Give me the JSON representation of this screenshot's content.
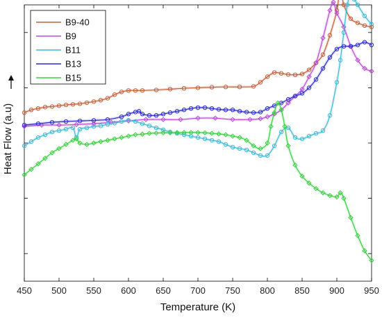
{
  "chart_data": {
    "type": "line",
    "xlabel": "Temperature (K)",
    "ylabel": "Heat Flow (a.u)",
    "xlim": [
      450,
      950
    ],
    "ylim": [
      0,
      10
    ],
    "xticks": [
      450,
      500,
      550,
      600,
      650,
      700,
      750,
      800,
      850,
      900,
      950
    ],
    "yticks": [
      1,
      3,
      5,
      7,
      9
    ],
    "y_tick_labels_shown": false,
    "grid": false,
    "legend_position": "top-left",
    "series": [
      {
        "name": "B9-40",
        "color": "#c0613a",
        "marker": "circle",
        "x": [
          450,
          460,
          470,
          480,
          490,
          500,
          510,
          520,
          530,
          540,
          550,
          560,
          570,
          580,
          590,
          600,
          610,
          620,
          640,
          660,
          680,
          700,
          720,
          740,
          760,
          780,
          790,
          800,
          810,
          820,
          830,
          840,
          850,
          860,
          870,
          880,
          890,
          900,
          905,
          910,
          920,
          930,
          940,
          950
        ],
        "y": [
          6.1,
          6.2,
          6.25,
          6.3,
          6.32,
          6.35,
          6.38,
          6.4,
          6.42,
          6.46,
          6.5,
          6.55,
          6.62,
          6.75,
          6.85,
          6.9,
          6.9,
          6.9,
          6.92,
          6.95,
          6.98,
          7.0,
          7.02,
          7.03,
          7.03,
          7.05,
          7.2,
          7.4,
          7.55,
          7.52,
          7.48,
          7.47,
          7.5,
          7.65,
          7.9,
          8.2,
          8.9,
          9.8,
          10.6,
          10.0,
          9.5,
          9.35,
          9.25,
          9.2
        ]
      },
      {
        "name": "B9",
        "color": "#b84ad8",
        "marker": "diamond",
        "x": [
          450,
          475,
          500,
          525,
          550,
          575,
          600,
          625,
          650,
          675,
          700,
          725,
          750,
          775,
          790,
          800,
          810,
          820,
          830,
          840,
          850,
          860,
          870,
          880,
          890,
          895,
          900,
          910,
          920,
          930,
          940,
          950
        ],
        "y": [
          5.6,
          5.65,
          5.65,
          5.67,
          5.7,
          5.75,
          5.8,
          5.85,
          5.85,
          5.85,
          5.9,
          5.9,
          5.85,
          5.85,
          5.88,
          5.95,
          6.05,
          6.2,
          6.45,
          6.7,
          6.95,
          7.4,
          7.9,
          8.8,
          9.8,
          10.1,
          9.7,
          9.2,
          8.5,
          8.0,
          7.7,
          7.6
        ]
      },
      {
        "name": "B11",
        "color": "#3fb8d8",
        "marker": "circle",
        "x": [
          450,
          460,
          470,
          480,
          490,
          500,
          510,
          520,
          525,
          530,
          540,
          550,
          560,
          570,
          580,
          590,
          600,
          610,
          620,
          630,
          640,
          650,
          660,
          670,
          680,
          690,
          700,
          710,
          720,
          730,
          740,
          750,
          760,
          770,
          780,
          790,
          800,
          810,
          820,
          830,
          840,
          850,
          860,
          870,
          880,
          890,
          900,
          905,
          910,
          915,
          920,
          925,
          930,
          940,
          950
        ],
        "y": [
          4.9,
          5.05,
          5.2,
          5.3,
          5.4,
          5.45,
          5.5,
          5.55,
          5.2,
          5.5,
          5.55,
          5.6,
          5.62,
          5.68,
          5.72,
          5.78,
          5.82,
          5.78,
          5.7,
          5.62,
          5.55,
          5.48,
          5.4,
          5.35,
          5.3,
          5.25,
          5.2,
          5.15,
          5.1,
          5.05,
          4.95,
          4.85,
          4.8,
          4.75,
          4.65,
          4.55,
          4.55,
          4.9,
          5.4,
          5.55,
          5.2,
          5.15,
          5.25,
          5.35,
          5.45,
          6.0,
          7.2,
          8.0,
          9.0,
          10.0,
          10.3,
          10.2,
          10.0,
          9.6,
          9.3
        ]
      },
      {
        "name": "B13",
        "color": "#2a2ad0",
        "marker": "circle",
        "x": [
          450,
          470,
          490,
          510,
          530,
          550,
          570,
          590,
          600,
          610,
          615,
          620,
          630,
          640,
          650,
          660,
          670,
          680,
          690,
          700,
          710,
          720,
          730,
          740,
          750,
          760,
          770,
          780,
          790,
          800,
          810,
          820,
          830,
          840,
          850,
          860,
          870,
          880,
          890,
          900,
          910,
          920,
          930,
          940,
          950
        ],
        "y": [
          5.65,
          5.7,
          5.75,
          5.78,
          5.8,
          5.82,
          5.85,
          5.95,
          6.05,
          6.12,
          6.15,
          6.05,
          6.0,
          6.0,
          6.05,
          6.1,
          6.15,
          6.2,
          6.25,
          6.28,
          6.28,
          6.25,
          6.22,
          6.2,
          6.2,
          6.15,
          6.12,
          6.1,
          6.12,
          6.25,
          6.35,
          6.45,
          6.58,
          6.7,
          6.8,
          7.0,
          7.3,
          7.7,
          8.1,
          8.4,
          8.5,
          8.5,
          8.55,
          8.65,
          8.55
        ]
      },
      {
        "name": "B15",
        "color": "#3ad040",
        "marker": "diamond",
        "x": [
          450,
          460,
          470,
          480,
          490,
          500,
          510,
          520,
          525,
          530,
          540,
          550,
          560,
          570,
          580,
          590,
          600,
          610,
          620,
          630,
          640,
          650,
          660,
          670,
          680,
          690,
          700,
          710,
          720,
          730,
          740,
          750,
          760,
          770,
          780,
          790,
          800,
          805,
          810,
          815,
          820,
          825,
          830,
          840,
          850,
          860,
          870,
          880,
          890,
          900,
          905,
          910,
          920,
          930,
          940,
          950
        ],
        "y": [
          3.85,
          4.05,
          4.25,
          4.45,
          4.65,
          4.8,
          4.95,
          5.1,
          5.15,
          5.0,
          4.95,
          5.0,
          5.05,
          5.1,
          5.15,
          5.2,
          5.25,
          5.3,
          5.32,
          5.35,
          5.36,
          5.37,
          5.37,
          5.38,
          5.38,
          5.38,
          5.38,
          5.37,
          5.35,
          5.33,
          5.3,
          5.25,
          5.2,
          5.1,
          4.9,
          4.8,
          5.0,
          5.6,
          6.1,
          6.45,
          6.2,
          5.6,
          4.9,
          4.2,
          3.8,
          3.55,
          3.35,
          3.2,
          3.1,
          3.05,
          3.2,
          3.0,
          2.3,
          1.65,
          1.1,
          0.75
        ]
      }
    ]
  }
}
